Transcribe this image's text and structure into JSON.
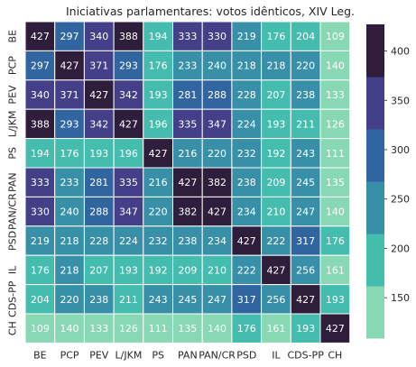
{
  "chart_data": {
    "type": "heatmap",
    "title": "Iniciativas parlamentares: votos idênticos, XIV Leg.",
    "xlabel": "",
    "ylabel": "",
    "x_categories": [
      "BE",
      "PCP",
      "PEV",
      "L/JKM",
      "PS",
      "PAN",
      "PAN/CR",
      "PSD",
      "IL",
      "CDS-PP",
      "CH"
    ],
    "y_categories": [
      "BE",
      "PCP",
      "PEV",
      "L/JKM",
      "PS",
      "PAN",
      "PAN/CR",
      "PSD",
      "IL",
      "CDS-PP",
      "CH"
    ],
    "matrix": [
      [
        427,
        297,
        340,
        388,
        194,
        333,
        330,
        219,
        176,
        204,
        109
      ],
      [
        297,
        427,
        371,
        293,
        176,
        233,
        240,
        218,
        218,
        220,
        140
      ],
      [
        340,
        371,
        427,
        342,
        193,
        281,
        288,
        228,
        207,
        238,
        133
      ],
      [
        388,
        293,
        342,
        427,
        196,
        335,
        347,
        224,
        193,
        211,
        126
      ],
      [
        194,
        176,
        193,
        196,
        427,
        216,
        220,
        232,
        192,
        243,
        111
      ],
      [
        333,
        233,
        281,
        335,
        216,
        427,
        382,
        238,
        209,
        245,
        135
      ],
      [
        330,
        240,
        288,
        347,
        220,
        382,
        427,
        234,
        210,
        247,
        140
      ],
      [
        219,
        218,
        228,
        224,
        232,
        238,
        234,
        427,
        222,
        317,
        176
      ],
      [
        176,
        218,
        207,
        193,
        192,
        209,
        210,
        222,
        427,
        256,
        161
      ],
      [
        204,
        220,
        238,
        211,
        243,
        245,
        247,
        317,
        256,
        427,
        193
      ],
      [
        109,
        140,
        133,
        126,
        111,
        135,
        140,
        176,
        161,
        193,
        427
      ]
    ],
    "colorbar": {
      "ticks": [
        150,
        200,
        250,
        300,
        350,
        400
      ],
      "range": [
        109,
        427
      ],
      "colors": [
        "#88d8b3",
        "#44bcae",
        "#3790a7",
        "#3165a0",
        "#433f89",
        "#2e1e3c"
      ]
    }
  }
}
